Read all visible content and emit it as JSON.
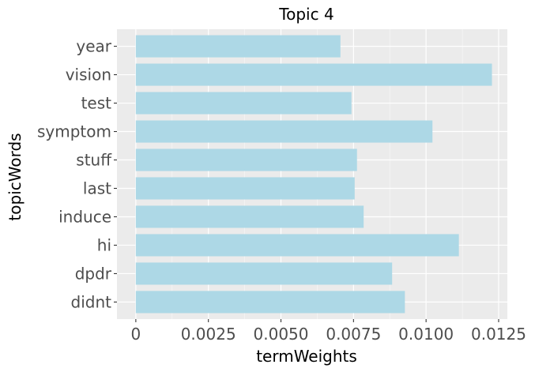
{
  "chart_data": {
    "type": "bar",
    "orientation": "horizontal",
    "title": "Topic 4",
    "xlabel": "termWeights",
    "ylabel": "topicWords",
    "categories": [
      "year",
      "vision",
      "test",
      "symptom",
      "stuff",
      "last",
      "induce",
      "hi",
      "dpdr",
      "didnt"
    ],
    "values": [
      0.00705,
      0.01227,
      0.00743,
      0.01022,
      0.00762,
      0.00754,
      0.00785,
      0.01113,
      0.00883,
      0.00927
    ],
    "xlim": [
      -0.00065,
      0.0128
    ],
    "xticks": [
      0,
      0.0025,
      0.005,
      0.0075,
      0.01,
      0.0125
    ],
    "xtick_labels": [
      "0",
      "0.0025",
      "0.0050",
      "0.0075",
      "0.0100",
      "0.0125"
    ],
    "grid": true,
    "legend": "none",
    "colors": {
      "bar": "#add8e6",
      "panel": "#ebebeb",
      "grid_major": "#ffffff",
      "tick_text": "#4d4d4d",
      "tick_mark": "#333333"
    }
  }
}
